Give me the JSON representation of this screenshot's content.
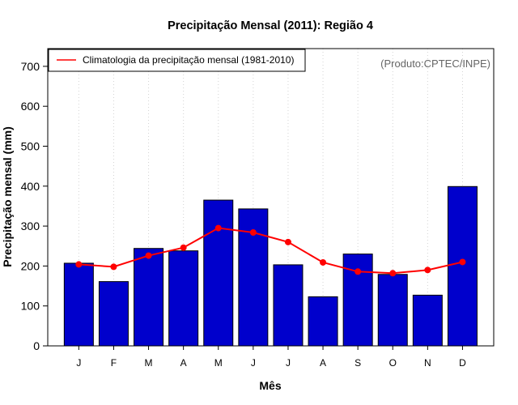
{
  "chart_data": {
    "type": "bar",
    "title": "Precipitação Mensal (2011): Região 4",
    "xlabel": "Mês",
    "ylabel": "Precipitação mensal (mm)",
    "ylim": [
      0,
      750
    ],
    "yticks": [
      "0",
      "100",
      "200",
      "300",
      "400",
      "500",
      "600",
      "700"
    ],
    "ytick_values": [
      0,
      100,
      200,
      300,
      400,
      500,
      600,
      700
    ],
    "categories": [
      "J",
      "F",
      "M",
      "A",
      "M",
      "J",
      "J",
      "A",
      "S",
      "O",
      "N",
      "D"
    ],
    "series": [
      {
        "name": "Precipitação mensal (2011)",
        "type": "bar",
        "color": "#0000CC",
        "values": [
          207,
          161,
          244,
          238,
          365,
          343,
          203,
          123,
          230,
          179,
          127,
          399
        ]
      },
      {
        "name": "Climatologia da precipitação mensal (1981-2010)",
        "type": "line",
        "color": "#FF0000",
        "values": [
          204,
          198,
          226,
          246,
          295,
          284,
          260,
          209,
          186,
          182,
          190,
          210
        ]
      }
    ],
    "legend": {
      "position": "top-left",
      "label": "Climatologia da precipitação mensal (1981-2010)"
    },
    "annotation": "(Produto:CPTEC/INPE)",
    "grid": "vertical dotted"
  }
}
